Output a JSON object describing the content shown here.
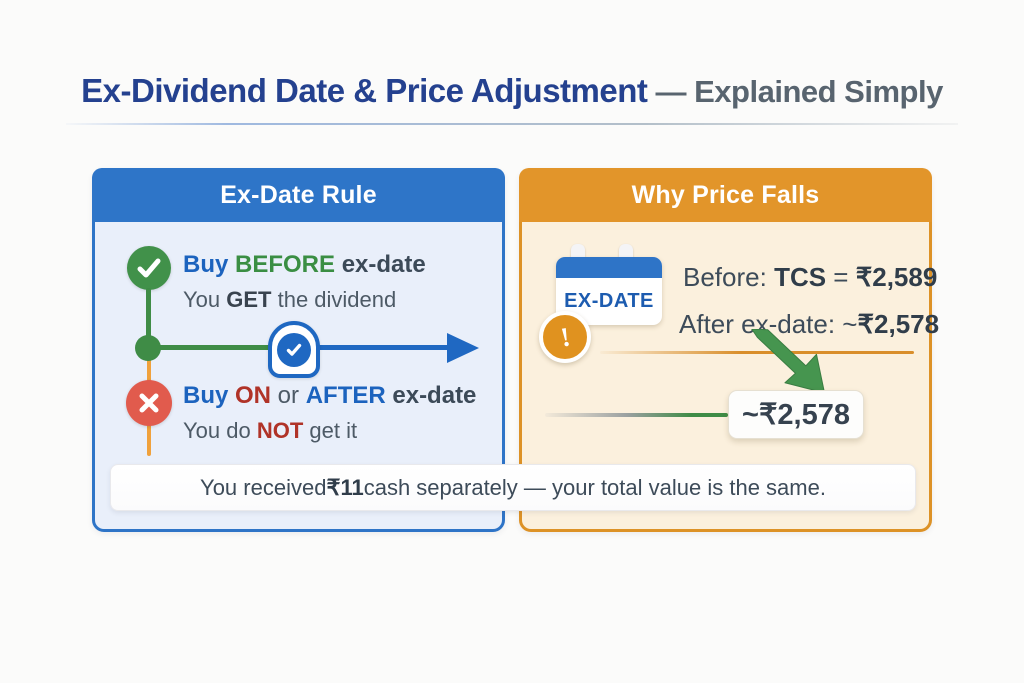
{
  "header": {
    "title_main": "Ex-Dividend Date & Price Adjustment",
    "title_sub": " — Explained Simply"
  },
  "left_panel": {
    "title": "Ex-Date Rule",
    "rule_before": {
      "line1": [
        {
          "t": "Buy ",
          "c": "blue"
        },
        {
          "t": "BEFORE",
          "c": "green"
        },
        {
          "t": " ex-date",
          "c": "dark"
        }
      ],
      "line2": [
        {
          "t": "You ",
          "c": "gray"
        },
        {
          "t": "GET",
          "c": "dark-bold"
        },
        {
          "t": " the dividend",
          "c": "gray"
        }
      ]
    },
    "rule_after": {
      "line1": [
        {
          "t": "Buy ",
          "c": "blue"
        },
        {
          "t": "ON",
          "c": "red"
        },
        {
          "t": " or ",
          "c": "gray"
        },
        {
          "t": "AFTER",
          "c": "blue"
        },
        {
          "t": " ex-date",
          "c": "dark"
        }
      ],
      "line2": [
        {
          "t": "You do ",
          "c": "gray"
        },
        {
          "t": "NOT",
          "c": "red"
        },
        {
          "t": " get it",
          "c": "gray"
        }
      ]
    }
  },
  "right_panel": {
    "title": "Why Price Falls",
    "calendar_label": "EX-DATE",
    "alert_mark": "!",
    "line_before": [
      {
        "t": "Before: ",
        "c": "slate"
      },
      {
        "t": "TCS",
        "c": "slate-bold"
      },
      {
        "t": " = ",
        "c": "slate"
      },
      {
        "t": "₹2,589",
        "c": "slate-bold"
      }
    ],
    "line_after": [
      {
        "t": "After ex-date: ~",
        "c": "slate"
      },
      {
        "t": "₹2,578",
        "c": "slate-bold"
      }
    ],
    "price_box": "~₹2,578"
  },
  "banner": [
    {
      "t": "You received ",
      "c": "slate"
    },
    {
      "t": "₹11",
      "c": "slate-bold"
    },
    {
      "t": " cash separately  —  your total value is the same.",
      "c": "slate"
    }
  ],
  "colors": {
    "title_navy": "#24418f",
    "panel_blue": "#2e75c8",
    "panel_orange": "#e2952a",
    "body_light_blue": "#e9effa",
    "body_cream": "#fbf0dd",
    "green": "#3f8c46",
    "red": "#e15b4d",
    "text_slate": "#3d4b59"
  }
}
